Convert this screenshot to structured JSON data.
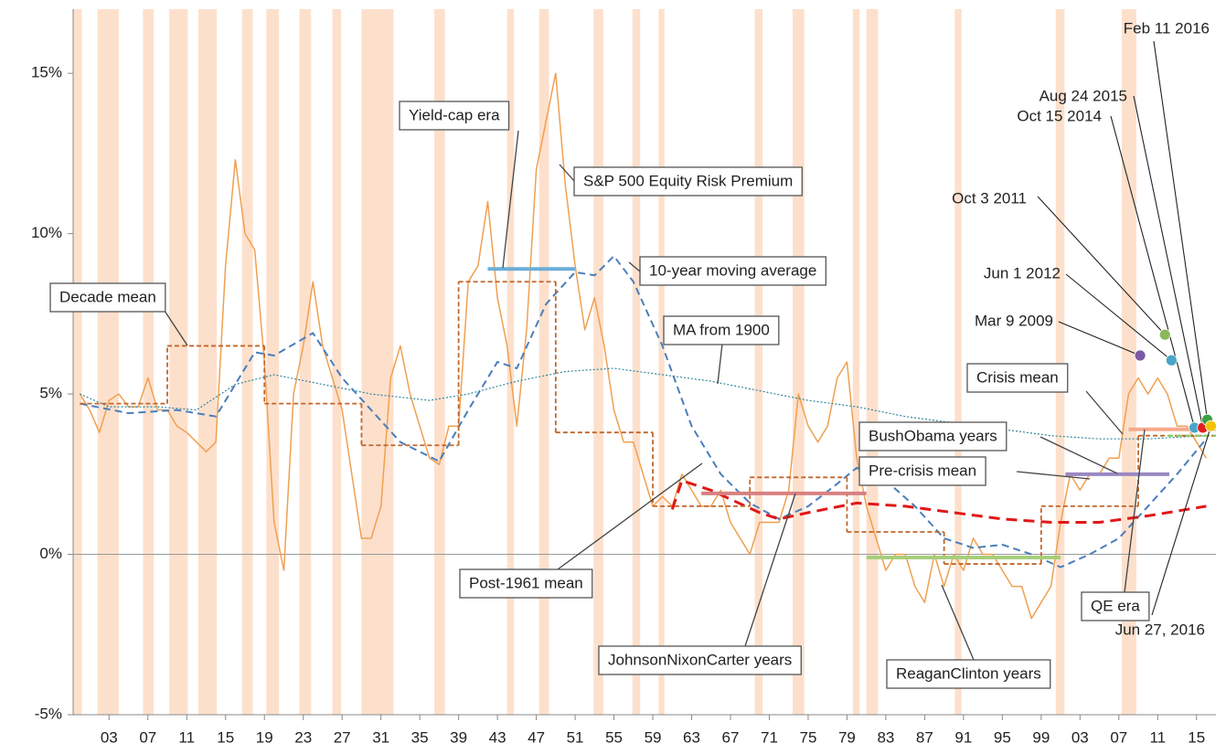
{
  "chart_data": {
    "type": "line",
    "xlim": [
      1899.3,
      2017
    ],
    "ylim": [
      -5,
      17
    ],
    "yticks": [
      {
        "value": -5,
        "label": "-5%"
      },
      {
        "value": 0,
        "label": "0%"
      },
      {
        "value": 5,
        "label": "5%"
      },
      {
        "value": 10,
        "label": "10%"
      },
      {
        "value": 15,
        "label": "15%"
      }
    ],
    "xticks": [
      {
        "value": 1903,
        "label": "03"
      },
      {
        "value": 1907,
        "label": "07"
      },
      {
        "value": 1911,
        "label": "11"
      },
      {
        "value": 1915,
        "label": "15"
      },
      {
        "value": 1919,
        "label": "19"
      },
      {
        "value": 1923,
        "label": "23"
      },
      {
        "value": 1927,
        "label": "27"
      },
      {
        "value": 1931,
        "label": "31"
      },
      {
        "value": 1935,
        "label": "35"
      },
      {
        "value": 1939,
        "label": "39"
      },
      {
        "value": 1943,
        "label": "43"
      },
      {
        "value": 1947,
        "label": "47"
      },
      {
        "value": 1951,
        "label": "51"
      },
      {
        "value": 1955,
        "label": "55"
      },
      {
        "value": 1959,
        "label": "59"
      },
      {
        "value": 1963,
        "label": "63"
      },
      {
        "value": 1967,
        "label": "67"
      },
      {
        "value": 1971,
        "label": "71"
      },
      {
        "value": 1975,
        "label": "75"
      },
      {
        "value": 1979,
        "label": "79"
      },
      {
        "value": 1983,
        "label": "83"
      },
      {
        "value": 1987,
        "label": "87"
      },
      {
        "value": 1991,
        "label": "91"
      },
      {
        "value": 1995,
        "label": "95"
      },
      {
        "value": 1999,
        "label": "99"
      },
      {
        "value": 2003,
        "label": "03"
      },
      {
        "value": 2007,
        "label": "07"
      },
      {
        "value": 2011,
        "label": "11"
      },
      {
        "value": 2015,
        "label": "15"
      }
    ],
    "zero_line": true,
    "recession_color": "#fde0cc",
    "recessions": [
      [
        1899.3,
        1900.2
      ],
      [
        1901.8,
        1904.0
      ],
      [
        1906.5,
        1907.6
      ],
      [
        1909.2,
        1911.1
      ],
      [
        1912.2,
        1914.1
      ],
      [
        1916.7,
        1917.8
      ],
      [
        1919.2,
        1920.5
      ],
      [
        1922.6,
        1923.8
      ],
      [
        1926.0,
        1926.9
      ],
      [
        1929.0,
        1932.3
      ],
      [
        1936.5,
        1937.6
      ],
      [
        1944.0,
        1944.7
      ],
      [
        1947.3,
        1948.3
      ],
      [
        1952.9,
        1953.9
      ],
      [
        1956.9,
        1957.7
      ],
      [
        1959.6,
        1960.2
      ],
      [
        1969.5,
        1970.3
      ],
      [
        1973.4,
        1974.6
      ],
      [
        1979.6,
        1980.3
      ],
      [
        1981.0,
        1982.2
      ],
      [
        1990.1,
        1990.8
      ],
      [
        2000.5,
        2001.4
      ],
      [
        2007.3,
        2008.8
      ]
    ],
    "series": [
      {
        "name": "S&P 500 Equity Risk Premium",
        "color": "#f0a050",
        "style": "solid",
        "width": 1.5,
        "x": [
          1900,
          1901,
          1902,
          1903,
          1904,
          1905,
          1906,
          1907,
          1908,
          1909,
          1910,
          1911,
          1912,
          1913,
          1914,
          1915,
          1916,
          1917,
          1918,
          1919,
          1920,
          1921,
          1922,
          1923,
          1924,
          1925,
          1926,
          1927,
          1928,
          1929,
          1930,
          1931,
          1932,
          1933,
          1934,
          1935,
          1936,
          1937,
          1938,
          1939,
          1940,
          1941,
          1942,
          1943,
          1944,
          1945,
          1946,
          1947,
          1948,
          1949,
          1950,
          1951,
          1952,
          1953,
          1954,
          1955,
          1956,
          1957,
          1958,
          1959,
          1960,
          1961,
          1962,
          1963,
          1964,
          1965,
          1966,
          1967,
          1968,
          1969,
          1970,
          1971,
          1972,
          1973,
          1974,
          1975,
          1976,
          1977,
          1978,
          1979,
          1980,
          1981,
          1982,
          1983,
          1984,
          1985,
          1986,
          1987,
          1988,
          1989,
          1990,
          1991,
          1992,
          1993,
          1994,
          1995,
          1996,
          1997,
          1998,
          1999,
          2000,
          2001,
          2002,
          2003,
          2004,
          2005,
          2006,
          2007,
          2008,
          2009,
          2010,
          2011,
          2012,
          2013,
          2014,
          2015,
          2016
        ],
        "values": [
          5.0,
          4.5,
          3.8,
          4.8,
          5.0,
          4.6,
          4.6,
          5.5,
          4.5,
          4.5,
          4.0,
          3.8,
          3.5,
          3.2,
          3.5,
          9.0,
          12.3,
          10.0,
          9.5,
          6.0,
          1.0,
          -0.5,
          5.0,
          6.5,
          8.5,
          6.5,
          5.5,
          4.5,
          2.5,
          0.5,
          0.5,
          1.5,
          5.5,
          6.5,
          5.0,
          4.0,
          3.0,
          2.8,
          4.0,
          4.0,
          8.5,
          9.0,
          11.0,
          8.0,
          6.5,
          4.0,
          7.0,
          12.0,
          13.5,
          15.0,
          11.5,
          9.0,
          7.0,
          8.0,
          6.5,
          4.5,
          3.5,
          3.5,
          2.5,
          1.5,
          1.8,
          1.5,
          2.5,
          2.0,
          1.5,
          1.5,
          2.0,
          1.0,
          0.5,
          0.0,
          1.0,
          1.0,
          1.0,
          2.0,
          5.0,
          4.0,
          3.5,
          4.0,
          5.5,
          6.0,
          3.0,
          1.5,
          0.5,
          -0.5,
          0.0,
          0.0,
          -1.0,
          -1.5,
          0.0,
          -1.0,
          0.0,
          -0.5,
          0.5,
          0.0,
          0.0,
          -0.5,
          -1.0,
          -1.0,
          -2.0,
          -1.5,
          -1.0,
          1.0,
          2.5,
          2.0,
          2.5,
          2.5,
          3.0,
          3.0,
          5.0,
          5.5,
          5.0,
          5.5,
          5.0,
          4.0,
          4.0,
          3.5,
          3.0
        ]
      },
      {
        "name": "10-year moving average",
        "color": "#4a7ebb",
        "style": "dash",
        "width": 2,
        "x": [
          1900,
          1905,
          1910,
          1914,
          1918,
          1920,
          1924,
          1927,
          1930,
          1933,
          1937,
          1940,
          1943,
          1945,
          1948,
          1951,
          1953,
          1955,
          1957,
          1960,
          1963,
          1966,
          1969,
          1972,
          1975,
          1978,
          1980,
          1983,
          1986,
          1989,
          1992,
          1995,
          1998,
          2001,
          2004,
          2007,
          2010,
          2013,
          2016
        ],
        "values": [
          4.7,
          4.4,
          4.5,
          4.3,
          6.3,
          6.2,
          6.9,
          5.5,
          4.5,
          3.5,
          2.9,
          4.5,
          6.0,
          5.8,
          7.8,
          8.8,
          8.7,
          9.3,
          8.5,
          6.5,
          4.0,
          2.5,
          1.6,
          1.1,
          1.5,
          2.2,
          2.7,
          2.3,
          1.5,
          0.5,
          0.2,
          0.3,
          0.0,
          -0.4,
          0.0,
          0.5,
          1.5,
          2.5,
          3.6
        ]
      },
      {
        "name": "MA from 1900",
        "color": "#31859c",
        "style": "dot",
        "width": 1.2,
        "x": [
          1900,
          1903,
          1908,
          1912,
          1916,
          1920,
          1925,
          1930,
          1936,
          1940,
          1945,
          1950,
          1955,
          1960,
          1965,
          1970,
          1975,
          1980,
          1985,
          1990,
          1995,
          2000,
          2005,
          2010,
          2016
        ],
        "values": [
          5.0,
          4.6,
          4.6,
          4.5,
          5.3,
          5.6,
          5.3,
          5.0,
          4.8,
          5.0,
          5.4,
          5.7,
          5.8,
          5.6,
          5.4,
          5.1,
          4.8,
          4.6,
          4.3,
          4.1,
          3.9,
          3.7,
          3.6,
          3.6,
          3.7
        ]
      },
      {
        "name": "Post-1961 mean",
        "color": "#e01818",
        "style": "bigdash",
        "width": 3,
        "x": [
          1961,
          1962,
          1965,
          1970,
          1972,
          1975,
          1980,
          1985,
          1990,
          1995,
          2000,
          2005,
          2010,
          2016
        ],
        "values": [
          1.4,
          2.3,
          2.0,
          1.3,
          1.1,
          1.3,
          1.6,
          1.5,
          1.3,
          1.1,
          1.0,
          1.0,
          1.2,
          1.5
        ]
      },
      {
        "name": "Decade mean",
        "color": "#c0662a",
        "style": "step",
        "width": 1.8,
        "x": [
          1900,
          1909,
          1919,
          1929,
          1939,
          1949,
          1959,
          1969,
          1979,
          1989,
          1999,
          2009
        ],
        "values": [
          4.7,
          6.5,
          4.7,
          3.4,
          8.5,
          3.8,
          1.5,
          2.4,
          0.7,
          -0.3,
          1.5,
          3.7
        ]
      }
    ],
    "segments": [
      {
        "name": "Yield-cap era",
        "color": "#6baed6",
        "x": [
          1942,
          1951
        ],
        "value": 8.9
      },
      {
        "name": "JohnsonNixonCarter years",
        "color": "#d98080",
        "x": [
          1964,
          1981
        ],
        "value": 1.9
      },
      {
        "name": "ReaganClinton years",
        "color": "#a6cf7a",
        "x": [
          1981,
          2001
        ],
        "value": -0.1
      },
      {
        "name": "BushObama years",
        "color": "#9a88c4",
        "x": [
          2001.5,
          2012.2
        ],
        "value": 2.5
      },
      {
        "name": "Pre-crisis mean",
        "color": "#c0662a",
        "x": [
          2002,
          2008
        ],
        "value": 1.5
      },
      {
        "name": "Crisis mean",
        "color": "#f6a88a",
        "x": [
          2008,
          2017
        ],
        "value": 3.9
      },
      {
        "name": "QE era",
        "color": "#8fcf6a",
        "x": [
          2012,
          2017
        ],
        "value": 3.7
      }
    ],
    "events": [
      {
        "label": "Mar 9 2009",
        "x": 2009.19,
        "value": 6.2,
        "color": "#7a5aa6"
      },
      {
        "label": "Oct 3 2011",
        "x": 2011.75,
        "value": 6.85,
        "color": "#8ab85a"
      },
      {
        "label": "Jun 1 2012",
        "x": 2012.42,
        "value": 6.05,
        "color": "#4aa6c8"
      },
      {
        "label": "Oct 15 2014",
        "x": 2014.79,
        "value": 3.95,
        "color": "#4aa6c8"
      },
      {
        "label": "Aug 24 2015",
        "x": 2015.65,
        "value": 3.95,
        "color": "#e02020"
      },
      {
        "label": "Feb 11 2016",
        "x": 2016.11,
        "value": 4.2,
        "color": "#3aa040"
      },
      {
        "label": "Jun 27, 2016",
        "x": 2016.49,
        "value": 4.0,
        "color": "#f2c200"
      }
    ]
  }
}
